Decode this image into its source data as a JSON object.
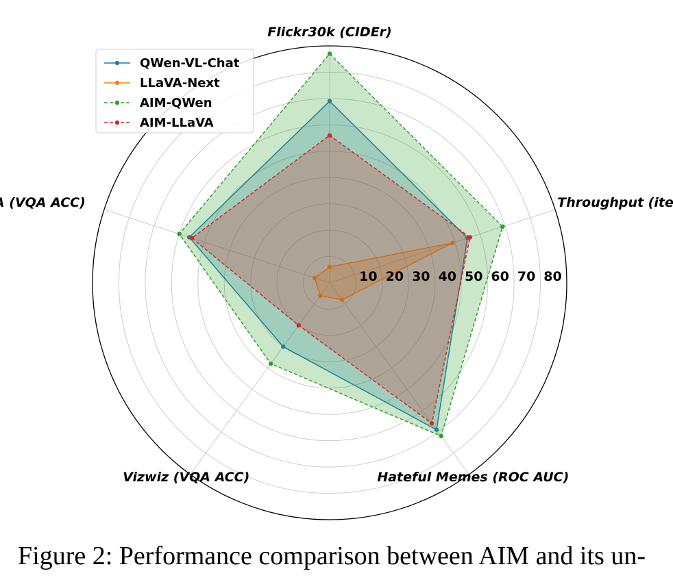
{
  "chart_data": {
    "type": "radar",
    "axes": [
      "Flickr30k (CIDEr)",
      "Throughput (iter/min)",
      "Hateful Memes (ROC AUC)",
      "Vizwiz (VQA ACC)",
      "OKVQA (VQA ACC)"
    ],
    "rmax": 90,
    "ticks": [
      10,
      20,
      30,
      40,
      50,
      60,
      70,
      80
    ],
    "series": [
      {
        "name": "QWen-VL-Chat",
        "values": [
          69,
          55,
          69,
          30,
          56
        ],
        "color": "#1f77b4",
        "dashed": false
      },
      {
        "name": "LLaVA-Next",
        "values": [
          6,
          49,
          8,
          6,
          6
        ],
        "color": "#ff7f0e",
        "dashed": false
      },
      {
        "name": "AIM-QWen",
        "values": [
          87,
          69,
          72,
          38,
          60
        ],
        "color": "#2ca02c",
        "dashed": true
      },
      {
        "name": "AIM-LLaVA",
        "values": [
          56,
          56,
          66,
          20,
          55
        ],
        "color": "#d62728",
        "dashed": true
      }
    ]
  },
  "caption": "Figure 2: Performance comparison between AIM and its un-"
}
